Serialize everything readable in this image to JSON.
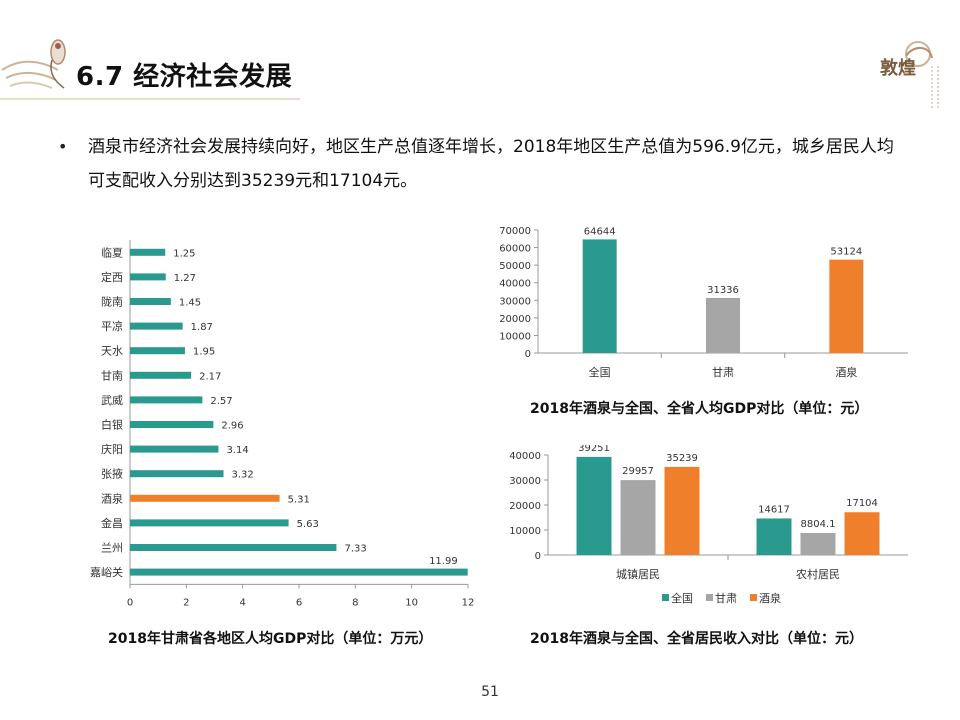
{
  "slide": {
    "title": "6.7 经济社会发展",
    "bullet": "酒泉市经济社会发展持续向好，地区生产总值逐年增长，2018年地区生产总值为596.9亿元，城乡居民人均可支配收入分别达到35239元和17104元。",
    "page_number": "51",
    "logo_text": "敦煌"
  },
  "colors": {
    "teal": "#2a9a8f",
    "gray": "#a6a6a6",
    "orange": "#f07f2b"
  },
  "chart_data": [
    {
      "id": "gansu_gdp",
      "type": "bar",
      "orientation": "horizontal",
      "caption": "2018年甘肃省各地区人均GDP对比（单位：万元）",
      "categories": [
        "临夏",
        "定西",
        "陇南",
        "平凉",
        "天水",
        "甘南",
        "武威",
        "白银",
        "庆阳",
        "张掖",
        "酒泉",
        "金昌",
        "兰州",
        "嘉峪关"
      ],
      "values": [
        1.25,
        1.27,
        1.45,
        1.87,
        1.95,
        2.17,
        2.57,
        2.96,
        3.14,
        3.32,
        5.31,
        5.63,
        7.33,
        11.99
      ],
      "labels": [
        "1.25",
        "1.27",
        "1.45",
        "1.87",
        "1.95",
        "2.17",
        "2.57",
        "2.96",
        "3.14",
        "3.32",
        "5.31",
        "5.63",
        "7.33",
        "11.99"
      ],
      "highlight": "酒泉",
      "xlim": [
        0,
        12
      ],
      "xticks": [
        "0",
        "2",
        "4",
        "6",
        "8",
        "10",
        "12"
      ]
    },
    {
      "id": "per_capita_gdp",
      "type": "bar",
      "caption": "2018年酒泉与全国、全省人均GDP对比（单位：元）",
      "categories": [
        "全国",
        "甘肃",
        "酒泉"
      ],
      "values": [
        64644,
        31336,
        53124
      ],
      "labels": [
        "64644",
        "31336",
        "53124"
      ],
      "ylim": [
        0,
        70000
      ],
      "yticks": [
        "0",
        "10000",
        "20000",
        "30000",
        "40000",
        "50000",
        "60000",
        "70000"
      ]
    },
    {
      "id": "resident_income",
      "type": "bar",
      "caption": "2018年酒泉与全国、全省居民收入对比（单位：元）",
      "categories": [
        "城镇居民",
        "农村居民"
      ],
      "series": [
        {
          "name": "全国",
          "values": [
            39251,
            14617
          ],
          "labels": [
            "39251",
            "14617"
          ]
        },
        {
          "name": "甘肃",
          "values": [
            29957,
            8804.1
          ],
          "labels": [
            "29957",
            "8804.1"
          ]
        },
        {
          "name": "酒泉",
          "values": [
            35239,
            17104
          ],
          "labels": [
            "35239",
            "17104"
          ]
        }
      ],
      "ylim": [
        0,
        40000
      ],
      "yticks": [
        "0",
        "10000",
        "20000",
        "30000",
        "40000"
      ],
      "legend_position": "bottom"
    }
  ]
}
